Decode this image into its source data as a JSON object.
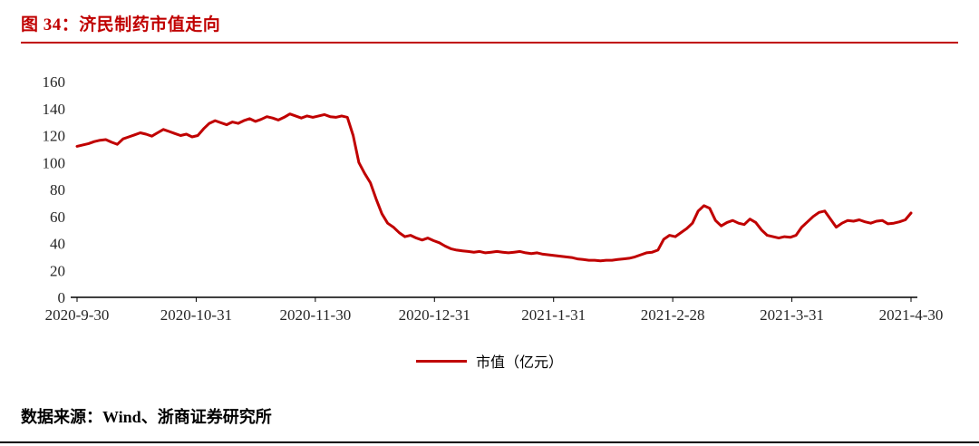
{
  "page": {
    "title": "图 34：济民制药市值走向",
    "source": "数据来源：Wind、浙商证券研究所",
    "accent_color": "#c00000",
    "rule_color_top": "#c00000",
    "rule_color_bottom": "#000000"
  },
  "chart_data": {
    "type": "line",
    "title": "济民制药市值走向",
    "xlabel": "",
    "ylabel": "市值（亿元）",
    "x_start": "2020-9-30",
    "x_end": "2021-4-30",
    "xticks": [
      "2020-9-30",
      "2020-10-31",
      "2020-11-30",
      "2020-12-31",
      "2021-1-31",
      "2021-2-28",
      "2021-3-31",
      "2021-4-30"
    ],
    "yticks": [
      0,
      20,
      40,
      60,
      80,
      100,
      120,
      140,
      160
    ],
    "ylim": [
      0,
      160
    ],
    "grid": false,
    "legend_position": "bottom",
    "series": [
      {
        "name": "市值（亿元）",
        "color": "#c00000",
        "values": [
          112,
          113,
          114,
          115.5,
          116.5,
          117,
          115,
          113.5,
          117.5,
          119,
          120.5,
          122,
          121,
          119.5,
          122,
          124.5,
          123,
          121.5,
          120,
          121,
          119,
          120,
          125,
          129,
          131,
          129.5,
          128,
          130,
          129,
          131,
          132.5,
          130.5,
          132,
          134,
          133,
          131.5,
          133.5,
          136,
          134.5,
          133,
          134.5,
          133.5,
          134.5,
          135.5,
          134,
          133.5,
          134.5,
          133.5,
          120,
          100,
          92,
          85,
          73,
          62,
          55,
          52,
          48,
          45,
          46,
          44,
          42.5,
          44,
          42,
          40.5,
          38,
          36,
          35,
          34.5,
          34,
          33.5,
          34,
          33,
          33.5,
          34,
          33.5,
          33,
          33.5,
          34,
          33,
          32.5,
          33,
          32,
          31.5,
          31,
          30.5,
          30,
          29.5,
          28.5,
          28,
          27.5,
          27.5,
          27,
          27.5,
          27.5,
          28,
          28.5,
          29,
          30,
          31.5,
          33,
          33.5,
          35,
          43,
          46,
          45,
          48,
          51,
          55,
          64,
          68,
          66,
          57,
          53,
          55.5,
          57,
          55,
          54,
          58,
          55.5,
          50,
          46,
          45,
          44,
          45,
          44.5,
          46,
          52,
          56,
          60,
          63,
          64,
          58,
          52,
          55,
          57,
          56.5,
          57.5,
          56,
          55,
          56.5,
          57,
          54.5,
          55,
          56,
          57.5,
          62.5
        ]
      }
    ]
  }
}
